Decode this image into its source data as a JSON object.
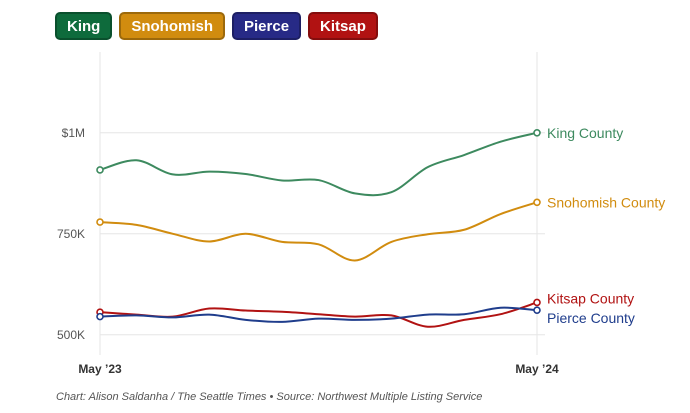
{
  "legend": {
    "items": [
      {
        "label": "King",
        "color": "#0e6b3c"
      },
      {
        "label": "Snohomish",
        "color": "#d18c0f"
      },
      {
        "label": "Pierce",
        "color": "#272a86"
      },
      {
        "label": "Kitsap",
        "color": "#b11212"
      }
    ]
  },
  "chart_data": {
    "type": "line",
    "x_tick_labels": [
      "May ’23",
      "May ’24"
    ],
    "y_tick_labels": [
      "$1M",
      "750K",
      "500K"
    ],
    "y_ticks": [
      1000000,
      750000,
      500000
    ],
    "ylim": [
      450000,
      1200000
    ],
    "x_count": 13,
    "grid": true,
    "series": [
      {
        "name": "King County",
        "color": "#3d8a5f",
        "values": [
          908000,
          932000,
          897000,
          904000,
          898000,
          882000,
          883000,
          850000,
          853000,
          915000,
          945000,
          978000,
          1000000
        ]
      },
      {
        "name": "Snohomish County",
        "color": "#d18c0f",
        "values": [
          779000,
          772000,
          750000,
          731000,
          750000,
          730000,
          724000,
          684000,
          730000,
          749000,
          760000,
          799000,
          828000
        ]
      },
      {
        "name": "Kitsap County",
        "color": "#b11212",
        "values": [
          556000,
          550000,
          545000,
          565000,
          560000,
          557000,
          551000,
          545000,
          548000,
          520000,
          537000,
          551000,
          580000
        ]
      },
      {
        "name": "Pierce County",
        "color": "#1f3d8c",
        "values": [
          545000,
          548000,
          543000,
          550000,
          537000,
          532000,
          540000,
          537000,
          540000,
          550000,
          551000,
          567000,
          561000
        ]
      }
    ]
  },
  "footer": {
    "credit": "Chart: Alison Saldanha / The Seattle Times • Source: Northwest Multiple Listing Service"
  }
}
